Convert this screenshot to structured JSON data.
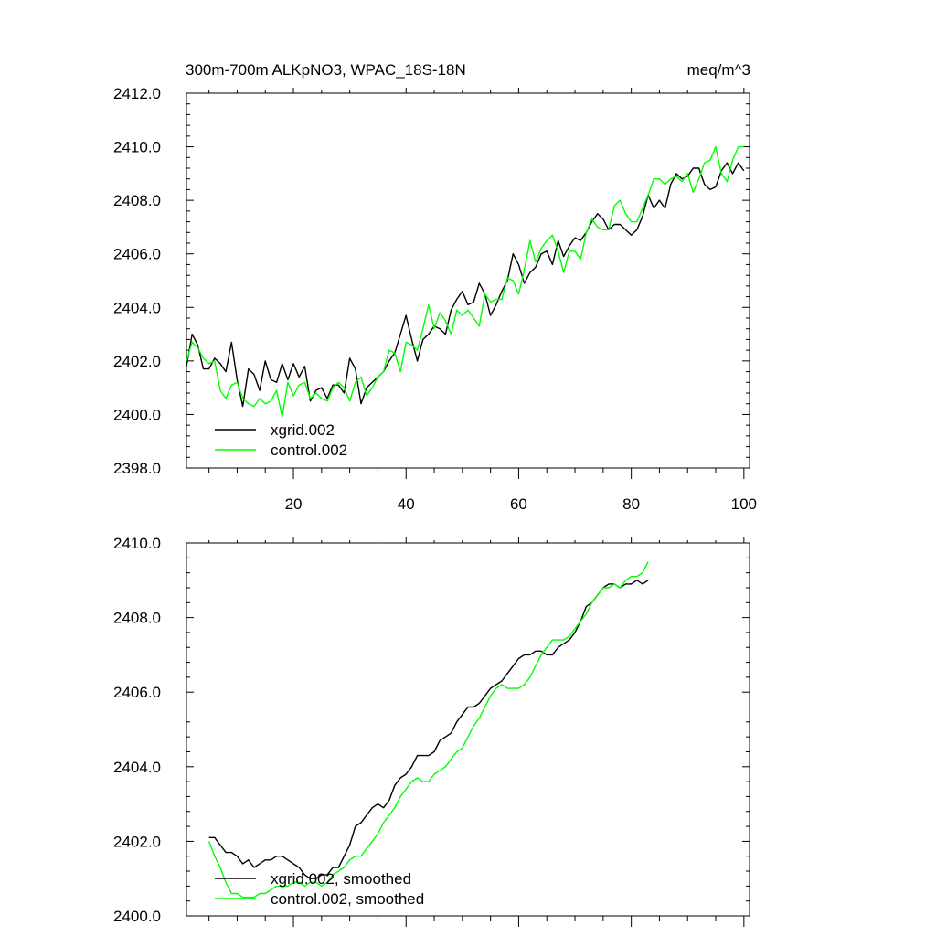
{
  "chart_data": [
    {
      "type": "line",
      "title_left": "300m-700m ALKpNO3, WPAC_18S-18N",
      "title_right": "meq/m^3",
      "xlabel": "",
      "ylabel": "",
      "xlim": [
        1,
        101
      ],
      "ylim": [
        2398.0,
        2412.0
      ],
      "yticks": [
        "2398.0",
        "2400.0",
        "2402.0",
        "2404.0",
        "2406.0",
        "2408.0",
        "2410.0",
        "2412.0"
      ],
      "xticks": [
        "20",
        "40",
        "60",
        "80",
        "100"
      ],
      "legend_position": "bottom-left",
      "series": [
        {
          "name": "xgrid.002",
          "color": "#000000",
          "x_start": 1,
          "values": [
            2401.8,
            2403.0,
            2402.6,
            2401.7,
            2401.7,
            2402.1,
            2401.9,
            2401.6,
            2402.7,
            2401.3,
            2400.3,
            2401.7,
            2401.5,
            2400.9,
            2402.0,
            2401.3,
            2401.2,
            2401.9,
            2401.3,
            2401.9,
            2401.4,
            2401.8,
            2400.5,
            2400.9,
            2401.0,
            2400.6,
            2401.1,
            2401.1,
            2400.8,
            2402.1,
            2401.7,
            2400.4,
            2401.0,
            2401.2,
            2401.4,
            2401.6,
            2402.0,
            2402.3,
            2403.0,
            2403.7,
            2402.8,
            2402.0,
            2402.8,
            2403.0,
            2403.3,
            2403.2,
            2403.0,
            2403.9,
            2404.3,
            2404.6,
            2404.1,
            2404.2,
            2404.9,
            2404.5,
            2403.7,
            2404.1,
            2404.6,
            2405.0,
            2406.0,
            2405.6,
            2404.9,
            2405.3,
            2405.5,
            2406.0,
            2406.1,
            2405.6,
            2406.5,
            2405.9,
            2406.3,
            2406.6,
            2406.5,
            2406.8,
            2407.2,
            2407.5,
            2407.3,
            2406.9,
            2407.1,
            2407.1,
            2406.9,
            2406.7,
            2406.9,
            2407.4,
            2408.2,
            2407.7,
            2408.0,
            2407.7,
            2408.6,
            2409.0,
            2408.8,
            2408.9,
            2409.2,
            2409.2,
            2408.6,
            2408.4,
            2408.5,
            2409.1,
            2409.4,
            2409.0,
            2409.4,
            2409.1
          ]
        },
        {
          "name": "control.002",
          "color": "#00ff00",
          "x_start": 1,
          "values": [
            2402.0,
            2402.7,
            2402.5,
            2402.1,
            2401.9,
            2402.0,
            2400.9,
            2400.6,
            2401.1,
            2401.2,
            2400.6,
            2400.4,
            2400.3,
            2400.6,
            2400.4,
            2400.5,
            2400.9,
            2399.9,
            2401.2,
            2400.7,
            2401.1,
            2401.2,
            2400.6,
            2400.8,
            2400.6,
            2400.5,
            2401.0,
            2401.2,
            2401.0,
            2400.5,
            2401.2,
            2401.4,
            2400.7,
            2401.0,
            2401.4,
            2401.6,
            2402.4,
            2402.3,
            2401.6,
            2402.7,
            2402.6,
            2402.4,
            2403.2,
            2404.1,
            2403.2,
            2403.8,
            2403.5,
            2403.0,
            2403.9,
            2403.7,
            2403.9,
            2403.6,
            2403.3,
            2404.5,
            2404.2,
            2404.3,
            2404.3,
            2405.1,
            2405.0,
            2404.5,
            2405.4,
            2406.5,
            2405.7,
            2406.2,
            2406.5,
            2406.7,
            2406.1,
            2405.3,
            2406.1,
            2406.1,
            2405.8,
            2406.8,
            2407.3,
            2407.0,
            2406.9,
            2406.9,
            2407.8,
            2408.0,
            2407.5,
            2407.2,
            2407.2,
            2407.7,
            2408.2,
            2408.8,
            2408.8,
            2408.6,
            2408.8,
            2408.9,
            2408.7,
            2409.0,
            2408.3,
            2408.8,
            2409.4,
            2409.5,
            2410.0,
            2409.0,
            2408.7,
            2409.5,
            2410.0,
            2410.0
          ]
        }
      ]
    },
    {
      "type": "line",
      "title_left": "",
      "title_right": "",
      "xlabel": "",
      "ylabel": "",
      "xlim": [
        1,
        101
      ],
      "ylim": [
        2400.0,
        2410.0
      ],
      "yticks": [
        "2400.0",
        "2402.0",
        "2404.0",
        "2406.0",
        "2408.0",
        "2410.0"
      ],
      "xticks": [],
      "legend_position": "bottom-left",
      "series": [
        {
          "name": "xgrid.002, smoothed",
          "color": "#000000",
          "x_start": 5,
          "values": [
            2402.1,
            2402.1,
            2401.9,
            2401.7,
            2401.7,
            2401.6,
            2401.4,
            2401.5,
            2401.3,
            2401.4,
            2401.5,
            2401.5,
            2401.6,
            2401.6,
            2401.5,
            2401.4,
            2401.3,
            2401.1,
            2401.0,
            2401.0,
            2401.1,
            2401.1,
            2401.3,
            2401.3,
            2401.6,
            2401.9,
            2402.4,
            2402.5,
            2402.7,
            2402.9,
            2403.0,
            2402.9,
            2403.1,
            2403.5,
            2403.7,
            2403.8,
            2404.0,
            2404.3,
            2404.3,
            2404.3,
            2404.4,
            2404.7,
            2404.8,
            2404.9,
            2405.2,
            2405.4,
            2405.6,
            2405.6,
            2405.7,
            2405.9,
            2406.1,
            2406.2,
            2406.3,
            2406.5,
            2406.7,
            2406.9,
            2407.0,
            2407.0,
            2407.1,
            2407.1,
            2407.0,
            2407.0,
            2407.2,
            2407.3,
            2407.4,
            2407.6,
            2407.9,
            2408.3,
            2408.4,
            2408.6,
            2408.8,
            2408.9,
            2408.9,
            2408.8,
            2408.9,
            2408.9,
            2409.0,
            2408.9,
            2409.0
          ]
        },
        {
          "name": "control.002, smoothed",
          "color": "#00ff00",
          "x_start": 5,
          "values": [
            2402.0,
            2401.6,
            2401.3,
            2400.9,
            2400.6,
            2400.6,
            2400.5,
            2400.5,
            2400.5,
            2400.6,
            2400.6,
            2400.7,
            2400.8,
            2400.8,
            2400.8,
            2400.9,
            2400.9,
            2400.8,
            2400.9,
            2400.9,
            2400.8,
            2400.9,
            2401.1,
            2401.2,
            2401.3,
            2401.5,
            2401.6,
            2401.6,
            2401.8,
            2402.0,
            2402.2,
            2402.5,
            2402.7,
            2402.9,
            2403.2,
            2403.4,
            2403.6,
            2403.7,
            2403.6,
            2403.6,
            2403.8,
            2403.9,
            2404.0,
            2404.2,
            2404.4,
            2404.5,
            2404.8,
            2405.1,
            2405.3,
            2405.6,
            2405.9,
            2406.1,
            2406.2,
            2406.1,
            2406.1,
            2406.1,
            2406.2,
            2406.4,
            2406.7,
            2407.0,
            2407.2,
            2407.4,
            2407.4,
            2407.4,
            2407.5,
            2407.7,
            2407.9,
            2408.1,
            2408.4,
            2408.6,
            2408.8,
            2408.8,
            2408.9,
            2408.8,
            2409.0,
            2409.1,
            2409.1,
            2409.2,
            2409.5
          ]
        }
      ]
    }
  ]
}
